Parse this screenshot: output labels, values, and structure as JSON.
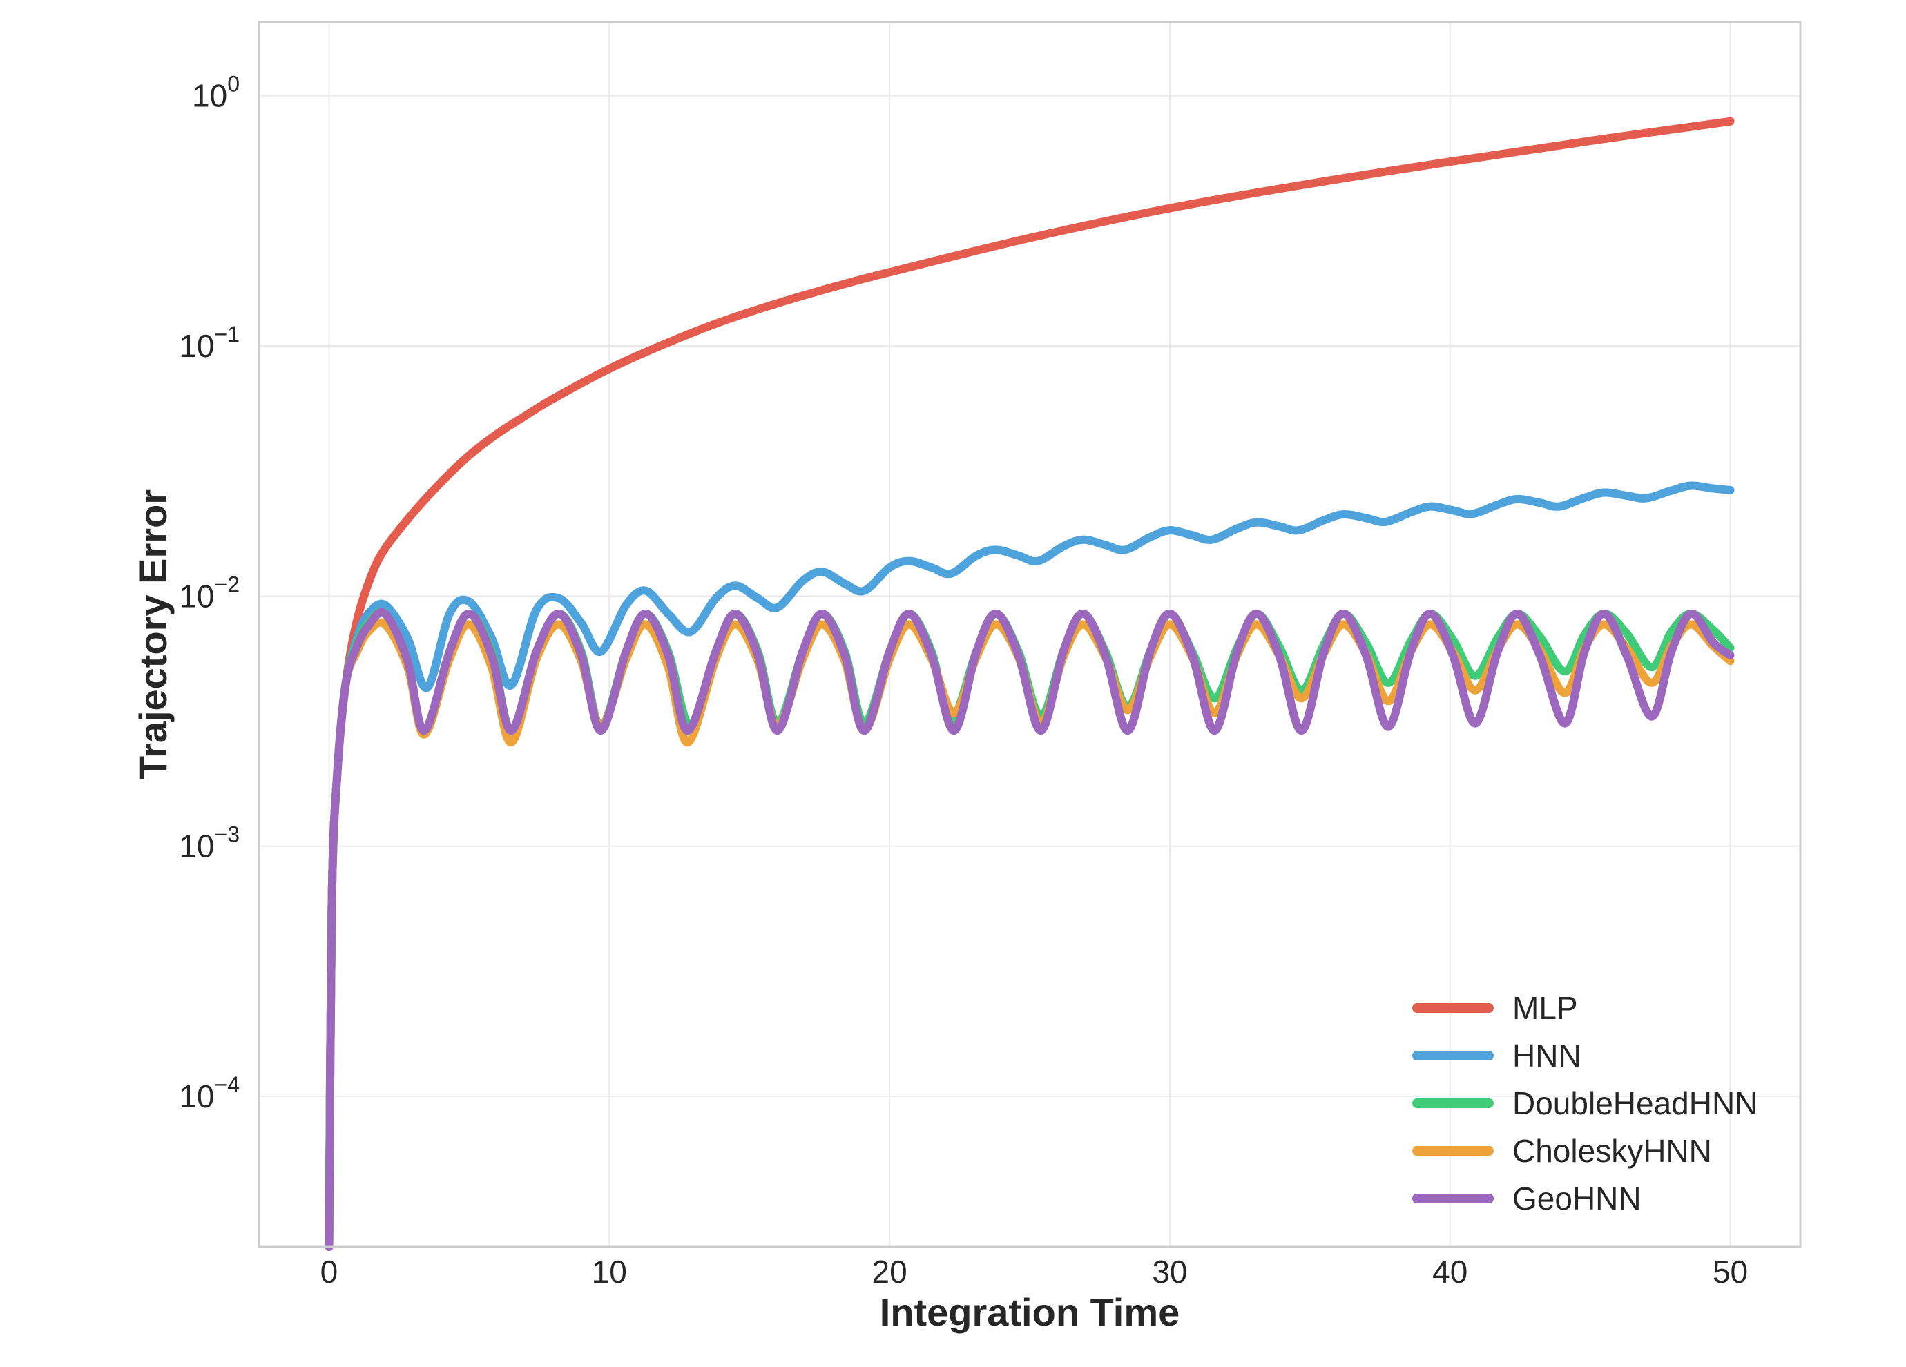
{
  "chart_data": {
    "type": "line",
    "title": "",
    "xlabel": "Integration Time",
    "ylabel": "Trajectory Error",
    "xlim": [
      -2.5,
      52.5
    ],
    "ylim": [
      2.5e-05,
      1.97
    ],
    "yscale": "log",
    "grid": true,
    "legend_position": "lower-right",
    "x_ticks": [
      0,
      10,
      20,
      30,
      40,
      50
    ],
    "x_tick_labels": [
      "0",
      "10",
      "20",
      "30",
      "40",
      "50"
    ],
    "y_ticks": [
      0.0001,
      0.001,
      0.01,
      0.1,
      1
    ],
    "y_tick_labels": [
      {
        "base": "10",
        "exp": "−4"
      },
      {
        "base": "10",
        "exp": "−3"
      },
      {
        "base": "10",
        "exp": "−2"
      },
      {
        "base": "10",
        "exp": "−1"
      },
      {
        "base": "10",
        "exp": "0"
      }
    ],
    "series": [
      {
        "name": "MLP",
        "color": "#e45c4e",
        "x": [
          0,
          0.1,
          0.3,
          0.6,
          1,
          1.5,
          2,
          3,
          4,
          5,
          6,
          7,
          8,
          10,
          12,
          14,
          16,
          18,
          20,
          25,
          30,
          35,
          40,
          45,
          50
        ],
        "y": [
          2.5e-05,
          0.0006,
          0.002,
          0.0045,
          0.008,
          0.012,
          0.0155,
          0.0215,
          0.0285,
          0.0365,
          0.0445,
          0.0525,
          0.0615,
          0.081,
          0.102,
          0.125,
          0.148,
          0.172,
          0.197,
          0.27,
          0.355,
          0.445,
          0.545,
          0.66,
          0.79
        ]
      },
      {
        "name": "HNN",
        "color": "#4ea3dc",
        "x": [
          0,
          0.1,
          0.3,
          0.6,
          1,
          1.4,
          2,
          2.8,
          3.5,
          4.3,
          5,
          5.8,
          6.5,
          7.4,
          8.2,
          9,
          9.7,
          10.6,
          11.3,
          12.1,
          12.9,
          13.8,
          14.5,
          15.3,
          16,
          16.9,
          17.6,
          18.4,
          19.1,
          20,
          20.7,
          21.5,
          22.2,
          23.1,
          23.8,
          24.6,
          25.3,
          26.2,
          26.9,
          27.7,
          28.4,
          29.3,
          30,
          30.8,
          31.5,
          32.4,
          33.1,
          33.9,
          34.6,
          35.5,
          36.2,
          37,
          37.7,
          38.6,
          39.3,
          40.1,
          40.8,
          41.7,
          42.4,
          43.2,
          43.9,
          44.8,
          45.5,
          46.3,
          47,
          47.9,
          48.6,
          49.4,
          50
        ],
        "y": [
          2.5e-05,
          0.0006,
          0.002,
          0.0045,
          0.0068,
          0.0085,
          0.0092,
          0.0068,
          0.0043,
          0.0085,
          0.0095,
          0.0068,
          0.0044,
          0.0088,
          0.0098,
          0.0078,
          0.006,
          0.0092,
          0.0105,
          0.0085,
          0.0072,
          0.0098,
          0.011,
          0.0098,
          0.009,
          0.0115,
          0.0125,
          0.0112,
          0.0105,
          0.013,
          0.0138,
          0.013,
          0.0123,
          0.0145,
          0.0153,
          0.0145,
          0.0138,
          0.0158,
          0.0168,
          0.016,
          0.0153,
          0.0172,
          0.0183,
          0.0175,
          0.0168,
          0.0186,
          0.0197,
          0.019,
          0.0183,
          0.0201,
          0.0212,
          0.0205,
          0.0198,
          0.0216,
          0.0228,
          0.022,
          0.0213,
          0.0232,
          0.0244,
          0.0236,
          0.0228,
          0.0247,
          0.0259,
          0.0252,
          0.0246,
          0.0264,
          0.0276,
          0.0269,
          0.0265
        ]
      },
      {
        "name": "DoubleHeadHNN",
        "color": "#3fcb78",
        "x": [
          0,
          0.1,
          0.3,
          0.6,
          1,
          1.4,
          2,
          2.8,
          3.4,
          4.3,
          5,
          5.8,
          6.5,
          7.4,
          8.2,
          9,
          9.7,
          10.6,
          11.3,
          12.1,
          12.9,
          13.8,
          14.5,
          15.3,
          16,
          16.9,
          17.6,
          18.4,
          19.1,
          20,
          20.7,
          21.5,
          22.2,
          23.1,
          23.8,
          24.6,
          25.4,
          26.2,
          26.9,
          27.7,
          28.5,
          29.3,
          30,
          30.8,
          31.6,
          32.4,
          33.1,
          33.9,
          34.7,
          35.5,
          36.2,
          37,
          37.8,
          38.6,
          39.3,
          40.1,
          40.9,
          41.7,
          42.4,
          43.2,
          44.1,
          44.8,
          45.5,
          46.3,
          47.2,
          47.9,
          48.6,
          49.4,
          50
        ],
        "y": [
          2.5e-05,
          0.0006,
          0.002,
          0.0045,
          0.0065,
          0.0078,
          0.0085,
          0.0055,
          0.0028,
          0.006,
          0.0085,
          0.006,
          0.0029,
          0.006,
          0.0085,
          0.006,
          0.003,
          0.006,
          0.0085,
          0.006,
          0.003,
          0.006,
          0.0085,
          0.006,
          0.0031,
          0.006,
          0.0085,
          0.006,
          0.0031,
          0.006,
          0.0085,
          0.006,
          0.0032,
          0.006,
          0.0085,
          0.006,
          0.0033,
          0.006,
          0.0085,
          0.006,
          0.0036,
          0.006,
          0.0085,
          0.006,
          0.0039,
          0.0062,
          0.0085,
          0.0063,
          0.0042,
          0.0064,
          0.0085,
          0.0065,
          0.0045,
          0.0066,
          0.0085,
          0.0067,
          0.0048,
          0.0068,
          0.0085,
          0.0069,
          0.005,
          0.007,
          0.0085,
          0.0071,
          0.0052,
          0.0072,
          0.0085,
          0.0073,
          0.0062
        ]
      },
      {
        "name": "CholeskyHNN",
        "color": "#eda33a",
        "x": [
          0,
          0.1,
          0.3,
          0.6,
          1,
          1.4,
          2,
          2.8,
          3.4,
          4.3,
          5,
          5.8,
          6.5,
          7.4,
          8.2,
          9,
          9.7,
          10.6,
          11.3,
          12.1,
          12.8,
          13.8,
          14.5,
          15.3,
          16,
          16.9,
          17.6,
          18.4,
          19.1,
          20,
          20.7,
          21.5,
          22.3,
          23.1,
          23.8,
          24.6,
          25.4,
          26.2,
          26.9,
          27.7,
          28.5,
          29.3,
          30,
          30.8,
          31.6,
          32.4,
          33.1,
          33.9,
          34.7,
          35.5,
          36.2,
          37,
          37.8,
          38.6,
          39.3,
          40.1,
          40.9,
          41.7,
          42.4,
          43.2,
          44.1,
          44.8,
          45.5,
          46.3,
          47.2,
          47.9,
          48.6,
          49.4,
          50
        ],
        "y": [
          2.5e-05,
          0.0006,
          0.002,
          0.0045,
          0.006,
          0.0072,
          0.0077,
          0.0052,
          0.0028,
          0.0056,
          0.0077,
          0.0052,
          0.0026,
          0.0056,
          0.0077,
          0.0055,
          0.003,
          0.0056,
          0.0077,
          0.0052,
          0.0026,
          0.0056,
          0.0077,
          0.0055,
          0.003,
          0.0056,
          0.0077,
          0.0055,
          0.0029,
          0.0056,
          0.0077,
          0.0056,
          0.0034,
          0.0057,
          0.0077,
          0.0057,
          0.0031,
          0.0057,
          0.0077,
          0.0057,
          0.0035,
          0.0057,
          0.0077,
          0.0057,
          0.0034,
          0.0058,
          0.0077,
          0.0058,
          0.0039,
          0.0059,
          0.0077,
          0.0059,
          0.0038,
          0.006,
          0.0077,
          0.006,
          0.0042,
          0.0061,
          0.0077,
          0.0061,
          0.0041,
          0.0062,
          0.0077,
          0.0062,
          0.0045,
          0.0063,
          0.0077,
          0.0063,
          0.0055
        ]
      },
      {
        "name": "GeoHNN",
        "color": "#9b68bd",
        "x": [
          0,
          0.1,
          0.3,
          0.6,
          1,
          1.4,
          2,
          2.8,
          3.4,
          4.3,
          5,
          5.8,
          6.5,
          7.4,
          8.2,
          9,
          9.7,
          10.6,
          11.3,
          12.1,
          12.8,
          13.8,
          14.5,
          15.3,
          16,
          16.9,
          17.6,
          18.4,
          19.1,
          20,
          20.7,
          21.5,
          22.3,
          23.1,
          23.8,
          24.6,
          25.4,
          26.2,
          26.9,
          27.7,
          28.5,
          29.3,
          30,
          30.8,
          31.6,
          32.4,
          33.1,
          33.9,
          34.7,
          35.5,
          36.2,
          37,
          37.8,
          38.6,
          39.3,
          40.1,
          40.9,
          41.7,
          42.4,
          43.2,
          44.1,
          44.8,
          45.5,
          46.3,
          47.2,
          47.9,
          48.6,
          49.4,
          50
        ],
        "y": [
          2.5e-05,
          0.0006,
          0.002,
          0.0045,
          0.0063,
          0.0076,
          0.0085,
          0.0055,
          0.0029,
          0.006,
          0.0085,
          0.0058,
          0.0029,
          0.006,
          0.0085,
          0.0058,
          0.0029,
          0.006,
          0.0085,
          0.0058,
          0.0029,
          0.006,
          0.0085,
          0.0058,
          0.0029,
          0.006,
          0.0085,
          0.0058,
          0.0029,
          0.006,
          0.0085,
          0.0058,
          0.0029,
          0.006,
          0.0085,
          0.0058,
          0.0029,
          0.006,
          0.0085,
          0.0058,
          0.0029,
          0.006,
          0.0085,
          0.0058,
          0.0029,
          0.006,
          0.0085,
          0.0058,
          0.0029,
          0.006,
          0.0085,
          0.0058,
          0.003,
          0.006,
          0.0085,
          0.0058,
          0.0031,
          0.006,
          0.0085,
          0.0058,
          0.0031,
          0.006,
          0.0085,
          0.0058,
          0.0033,
          0.006,
          0.0085,
          0.0065,
          0.0058
        ]
      }
    ]
  }
}
